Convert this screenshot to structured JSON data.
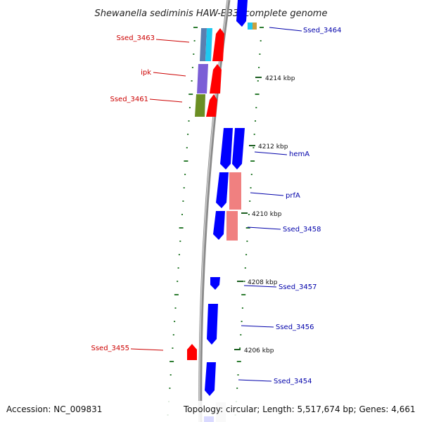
{
  "title": "Shewanella sediminis HAW-EB3, complete genome",
  "footer": {
    "accession": "Accession: NC_009831",
    "topology": "Topology: circular; Length: 5,517,674 bp; Genes: 4,661"
  },
  "colors": {
    "forward_gene": "#ff0000",
    "reverse_gene": "#0000ff",
    "backbone": "#888888",
    "label_red": "#cc0000",
    "label_blue": "#0000aa",
    "dots": "#2e7d32"
  },
  "left_labels": [
    {
      "text": "Ssed_3463"
    },
    {
      "text": "ipk"
    },
    {
      "text": "Ssed_3461"
    },
    {
      "text": "Ssed_3455"
    }
  ],
  "right_labels": [
    {
      "text": "Ssed_3464"
    },
    {
      "text": "hemA"
    },
    {
      "text": "prfA"
    },
    {
      "text": "Ssed_3458"
    },
    {
      "text": "Ssed_3457"
    },
    {
      "text": "Ssed_3456"
    },
    {
      "text": "Ssed_3454"
    }
  ],
  "ticks": [
    {
      "text": "4214 kbp"
    },
    {
      "text": "4212 kbp"
    },
    {
      "text": "4210 kbp"
    },
    {
      "text": "4208 kbp"
    },
    {
      "text": "4206 kbp"
    }
  ]
}
